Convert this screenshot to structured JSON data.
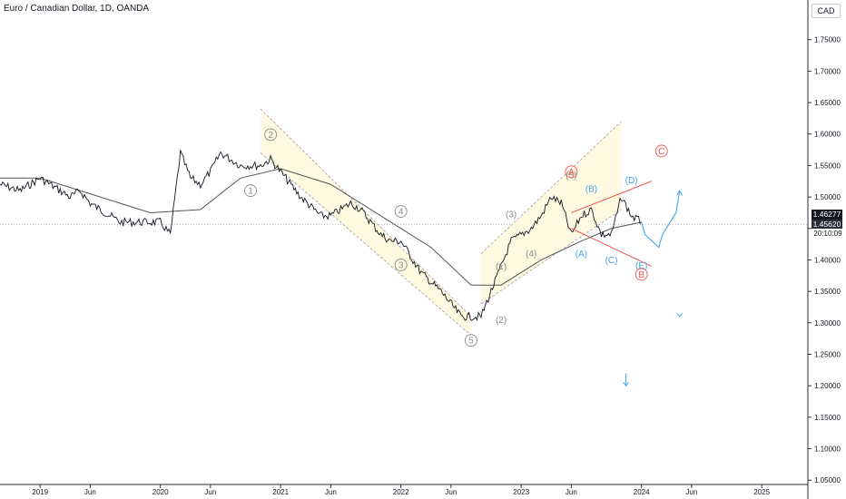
{
  "header": {
    "title": "Euro / Canadian Dollar, 1D, OANDA",
    "currency": "CAD"
  },
  "price_tags": {
    "last": "1.46277",
    "current": "1.45620",
    "countdown": "20:10:09"
  },
  "colors": {
    "price": "#131722",
    "ma": "#555555",
    "channel_fill": "#fff9e1",
    "channel_line": "#9e9e9e",
    "wave_grey": "#8a8a8a",
    "wave_blue": "#42a5f5",
    "wave_red": "#ef5350"
  },
  "chart_data": {
    "type": "line",
    "y_axis": {
      "range": [
        1.03,
        1.78
      ],
      "ticks": [
        "1.75000",
        "1.70000",
        "1.65000",
        "1.60000",
        "1.55000",
        "1.50000",
        "1.45000",
        "1.40000",
        "1.35000",
        "1.30000",
        "1.25000",
        "1.20000",
        "1.15000",
        "1.10000",
        "1.05000"
      ]
    },
    "x_axis": {
      "ticks": [
        "2019",
        "Jun",
        "2020",
        "Jun",
        "2021",
        "Jun",
        "2022",
        "Jun",
        "2023",
        "Jun",
        "2024",
        "Jun",
        "2025"
      ]
    },
    "series": [
      {
        "values": [
          [
            "2018-09",
            1.52
          ],
          [
            "2018-11",
            1.51
          ],
          [
            "2019-01",
            1.53
          ],
          [
            "2019-02",
            1.52
          ],
          [
            "2019-03",
            1.51
          ],
          [
            "2019-04",
            1.5
          ],
          [
            "2019-05",
            1.51
          ],
          [
            "2019-06",
            1.49
          ],
          [
            "2019-08",
            1.47
          ],
          [
            "2019-09",
            1.46
          ],
          [
            "2019-10",
            1.46
          ],
          [
            "2019-11",
            1.46
          ],
          [
            "2019-12",
            1.46
          ],
          [
            "2020-01",
            1.46
          ],
          [
            "2020-02",
            1.44
          ],
          [
            "2020-03",
            1.57
          ],
          [
            "2020-04",
            1.53
          ],
          [
            "2020-05",
            1.52
          ],
          [
            "2020-06",
            1.54
          ],
          [
            "2020-07",
            1.57
          ],
          [
            "2020-08",
            1.56
          ],
          [
            "2020-09",
            1.55
          ],
          [
            "2020-10",
            1.55
          ],
          [
            "2020-11",
            1.55
          ],
          [
            "2020-12",
            1.56
          ],
          [
            "2021-01",
            1.54
          ],
          [
            "2021-03",
            1.5
          ],
          [
            "2021-05",
            1.47
          ],
          [
            "2021-06",
            1.47
          ],
          [
            "2021-07",
            1.48
          ],
          [
            "2021-08",
            1.49
          ],
          [
            "2021-09",
            1.48
          ],
          [
            "2021-11",
            1.44
          ],
          [
            "2021-12",
            1.43
          ],
          [
            "2022-01",
            1.43
          ],
          [
            "2022-03",
            1.38
          ],
          [
            "2022-05",
            1.35
          ],
          [
            "2022-07",
            1.31
          ],
          [
            "2022-09",
            1.31
          ],
          [
            "2022-10",
            1.35
          ],
          [
            "2022-12",
            1.43
          ],
          [
            "2023-01",
            1.44
          ],
          [
            "2023-02",
            1.45
          ],
          [
            "2023-03",
            1.47
          ],
          [
            "2023-04",
            1.5
          ],
          [
            "2023-05",
            1.49
          ],
          [
            "2023-06",
            1.44
          ],
          [
            "2023-07",
            1.47
          ],
          [
            "2023-08",
            1.48
          ],
          [
            "2023-09",
            1.44
          ],
          [
            "2023-10",
            1.44
          ],
          [
            "2023-11",
            1.5
          ],
          [
            "2023-12",
            1.47
          ],
          [
            "2024-01",
            1.46
          ]
        ]
      },
      {
        "values": [
          [
            "2018-09",
            1.53
          ],
          [
            "2019-01",
            1.53
          ],
          [
            "2019-06",
            1.505
          ],
          [
            "2019-12",
            1.475
          ],
          [
            "2020-05",
            1.48
          ],
          [
            "2020-09",
            1.53
          ],
          [
            "2021-01",
            1.545
          ],
          [
            "2021-06",
            1.52
          ],
          [
            "2021-11",
            1.47
          ],
          [
            "2022-04",
            1.42
          ],
          [
            "2022-08",
            1.36
          ],
          [
            "2022-11",
            1.36
          ],
          [
            "2023-03",
            1.4
          ],
          [
            "2023-07",
            1.43
          ],
          [
            "2023-10",
            1.45
          ],
          [
            "2024-01",
            1.46
          ]
        ]
      }
    ],
    "channels": [
      {
        "a": [
          [
            "2020-11",
            1.64
          ],
          [
            "2022-08",
            1.31
          ]
        ],
        "b": [
          [
            "2020-11",
            1.57
          ],
          [
            "2022-08",
            1.28
          ]
        ]
      },
      {
        "a": [
          [
            "2022-09",
            1.41
          ],
          [
            "2023-11",
            1.62
          ]
        ],
        "b": [
          [
            "2022-09",
            1.33
          ],
          [
            "2023-11",
            1.48
          ]
        ]
      }
    ],
    "triangle": {
      "upper": [
        [
          "2023-06",
          1.475
        ],
        [
          "2024-02",
          1.525
        ]
      ],
      "lower": [
        [
          "2023-06",
          1.45
        ],
        [
          "2024-02",
          1.39
        ]
      ]
    },
    "projection": [
      [
        "2024-01",
        1.46
      ],
      [
        "2024-01",
        1.44
      ],
      [
        "2024-02",
        1.42
      ],
      [
        "2024-02",
        1.44
      ],
      [
        "2024-03",
        1.475
      ],
      [
        "2024-03",
        1.51
      ]
    ],
    "arrows": [
      {
        "at": [
          "2024-03",
          1.31
        ],
        "direction": "down"
      },
      {
        "at": [
          "2023-12",
          1.2
        ],
        "direction": "down"
      }
    ],
    "annotations": [
      {
        "text": "1",
        "x": "2020-10",
        "y": 1.505,
        "style": "grey-circle"
      },
      {
        "text": "2",
        "x": "2020-12",
        "y": 1.594,
        "style": "grey-circle"
      },
      {
        "text": "3",
        "x": "2022-01",
        "y": 1.387,
        "style": "grey-circle"
      },
      {
        "text": "4",
        "x": "2022-01",
        "y": 1.472,
        "style": "grey-circle"
      },
      {
        "text": "5",
        "x": "2022-08",
        "y": 1.267,
        "style": "grey-circle"
      },
      {
        "text": "(1)",
        "x": "2022-11",
        "y": 1.385,
        "style": "grey"
      },
      {
        "text": "(2)",
        "x": "2022-11",
        "y": 1.3,
        "style": "grey"
      },
      {
        "text": "(3)",
        "x": "2022-12",
        "y": 1.468,
        "style": "grey"
      },
      {
        "text": "(4)",
        "x": "2023-02",
        "y": 1.405,
        "style": "grey"
      },
      {
        "text": "(5)",
        "x": "2023-06",
        "y": 1.53,
        "style": "grey"
      },
      {
        "text": "A",
        "x": "2023-06",
        "y": 1.535,
        "style": "red-circle"
      },
      {
        "text": "(A)",
        "x": "2023-07",
        "y": 1.405,
        "style": "blue"
      },
      {
        "text": "(B)",
        "x": "2023-08",
        "y": 1.508,
        "style": "blue"
      },
      {
        "text": "(C)",
        "x": "2023-10",
        "y": 1.395,
        "style": "blue"
      },
      {
        "text": "(D)",
        "x": "2023-12",
        "y": 1.522,
        "style": "blue"
      },
      {
        "text": "(E)",
        "x": "2024-01",
        "y": 1.386,
        "style": "blue"
      },
      {
        "text": "B",
        "x": "2024-01",
        "y": 1.372,
        "style": "red-circle"
      },
      {
        "text": "C",
        "x": "2024-03",
        "y": 1.568,
        "style": "red-circle"
      }
    ]
  }
}
